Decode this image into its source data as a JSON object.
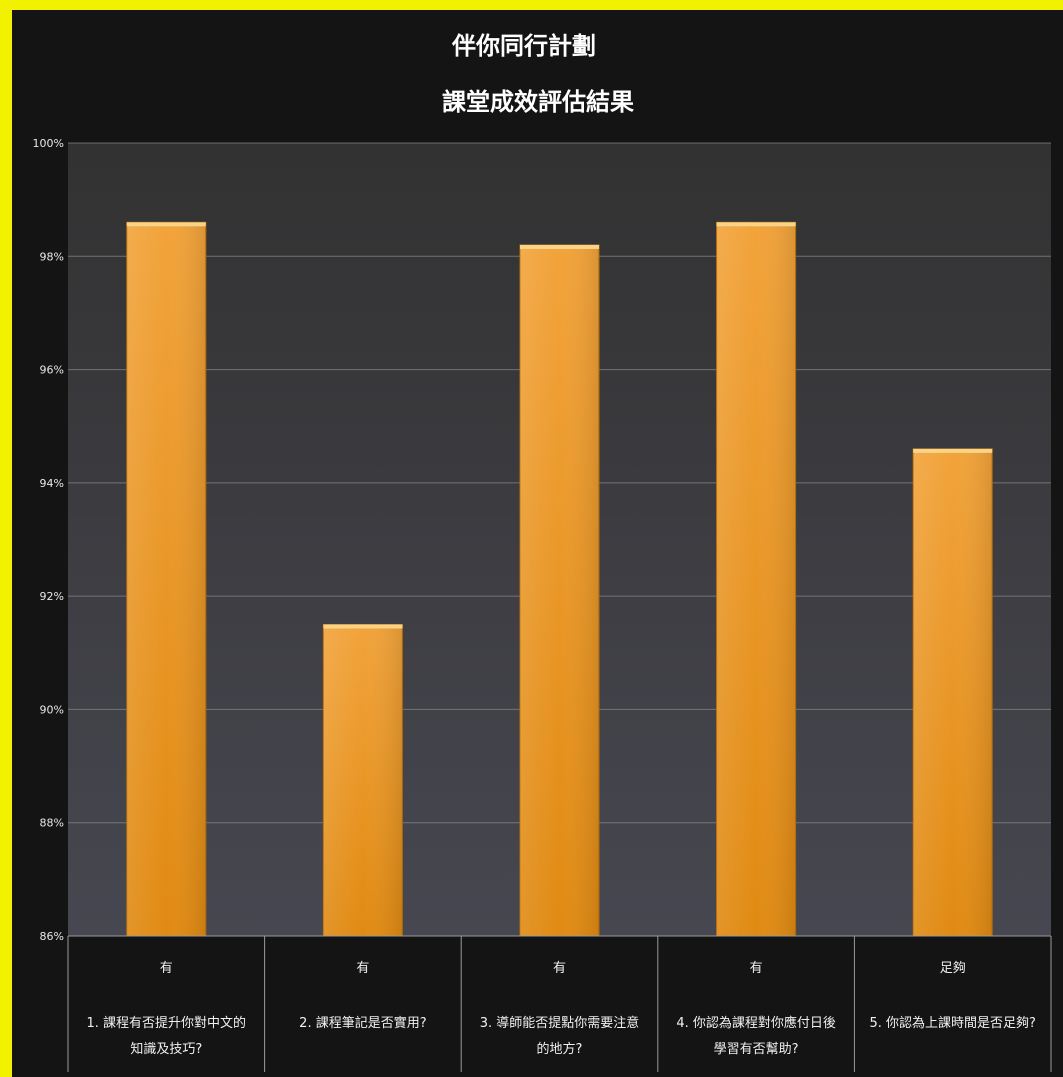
{
  "chart_data": {
    "type": "bar",
    "title": "伴你同行計劃",
    "subtitle": "課堂成效評估結果",
    "categories": [
      {
        "answer": "有",
        "question_line1": "1. 課程有否提升你對中文的",
        "question_line2": "知識及技巧?"
      },
      {
        "answer": "有",
        "question_line1": "2. 課程筆記是否實用?",
        "question_line2": ""
      },
      {
        "answer": "有",
        "question_line1": "3. 導師能否提點你需要注意",
        "question_line2": "的地方?"
      },
      {
        "answer": "有",
        "question_line1": "4. 你認為課程對你應付日後",
        "question_line2": "學習有否幫助?"
      },
      {
        "answer": "足夠",
        "question_line1": "5. 你認為上課時間是否足夠?",
        "question_line2": ""
      }
    ],
    "values": [
      98.6,
      91.5,
      98.2,
      98.6,
      94.6
    ],
    "ylim": [
      86,
      100
    ],
    "yticks": [
      "86%",
      "88%",
      "90%",
      "92%",
      "94%",
      "96%",
      "98%",
      "100%"
    ],
    "ytick_values": [
      86,
      88,
      90,
      92,
      94,
      96,
      98,
      100
    ],
    "grid": true,
    "colors": {
      "bar_top": "#f2a33a",
      "bar_bottom": "#e08a12",
      "plot_bg_top": "#323232",
      "plot_bg_bottom": "#474751",
      "frame": "#141414",
      "page": "#f2f200"
    }
  }
}
